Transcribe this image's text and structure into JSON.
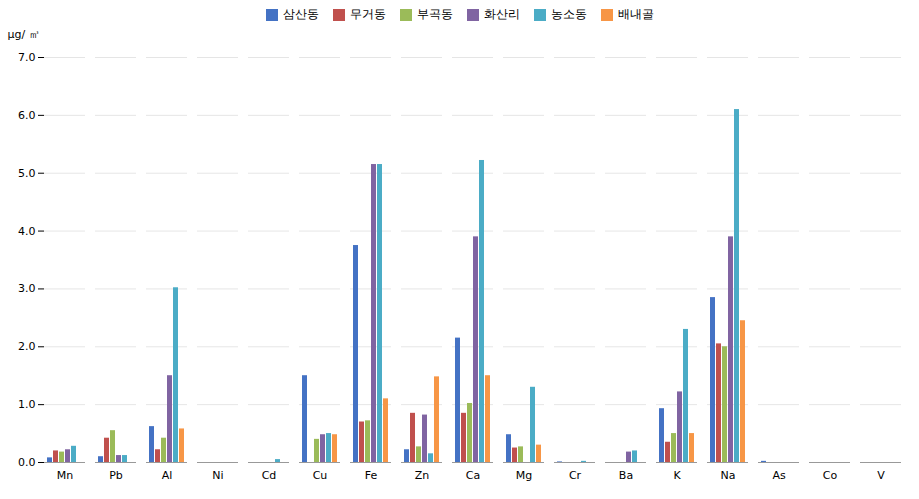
{
  "chart_data": {
    "type": "bar",
    "categories": [
      "Mn",
      "Pb",
      "Al",
      "Ni",
      "Cd",
      "Cu",
      "Fe",
      "Zn",
      "Ca",
      "Mg",
      "Cr",
      "Ba",
      "K",
      "Na",
      "As",
      "Co",
      "V"
    ],
    "series": [
      {
        "name": "삼산동",
        "color": "#4472C4",
        "values": [
          0.08,
          0.1,
          0.62,
          0.0,
          0.0,
          1.5,
          3.75,
          0.22,
          2.15,
          0.48,
          0.01,
          0.0,
          0.93,
          2.85,
          0.02,
          0.0,
          0.0
        ]
      },
      {
        "name": "무거동",
        "color": "#C0504D",
        "values": [
          0.2,
          0.42,
          0.22,
          0.0,
          0.0,
          0.0,
          0.7,
          0.85,
          0.85,
          0.25,
          0.0,
          0.0,
          0.35,
          2.05,
          0.0,
          0.0,
          0.0
        ]
      },
      {
        "name": "부곡동",
        "color": "#9BBB59",
        "values": [
          0.18,
          0.55,
          0.42,
          0.0,
          0.0,
          0.4,
          0.72,
          0.27,
          1.02,
          0.27,
          0.0,
          0.0,
          0.5,
          2.0,
          0.0,
          0.0,
          0.0
        ]
      },
      {
        "name": "화산리",
        "color": "#8064A2",
        "values": [
          0.22,
          0.12,
          1.5,
          0.0,
          0.0,
          0.48,
          5.15,
          0.82,
          3.9,
          0.0,
          0.0,
          0.18,
          1.22,
          3.9,
          0.0,
          0.0,
          0.0
        ]
      },
      {
        "name": "농소동",
        "color": "#4BACC6",
        "values": [
          0.28,
          0.12,
          3.02,
          0.0,
          0.05,
          0.5,
          5.15,
          0.15,
          5.22,
          1.3,
          0.02,
          0.2,
          2.3,
          6.1,
          0.0,
          0.0,
          0.0
        ]
      },
      {
        "name": "배내골",
        "color": "#F79646",
        "values": [
          0.0,
          0.0,
          0.58,
          0.0,
          0.0,
          0.48,
          1.1,
          1.48,
          1.5,
          0.3,
          0.0,
          0.0,
          0.5,
          2.45,
          0.0,
          0.0,
          0.0
        ]
      }
    ],
    "ylabel": "μg/ ㎥",
    "ylim": [
      0,
      7
    ],
    "yticks": [
      0,
      1,
      2,
      3,
      4,
      5,
      6,
      7
    ],
    "grid": true,
    "legend": "top"
  }
}
